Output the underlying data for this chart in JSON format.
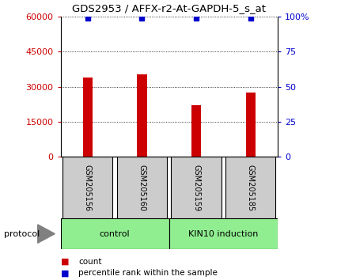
{
  "title": "GDS2953 / AFFX-r2-At-GAPDH-5_s_at",
  "samples": [
    "GSM205156",
    "GSM205160",
    "GSM205159",
    "GSM205185"
  ],
  "counts": [
    34000,
    35500,
    22000,
    27500
  ],
  "percentile_ranks": [
    99,
    99,
    99,
    99
  ],
  "bar_color": "#CC0000",
  "dot_color": "#0000CC",
  "left_ylim": [
    0,
    60000
  ],
  "right_ylim": [
    0,
    100
  ],
  "left_yticks": [
    0,
    15000,
    30000,
    45000,
    60000
  ],
  "right_yticks": [
    0,
    25,
    50,
    75,
    100
  ],
  "left_yticklabels": [
    "0",
    "15000",
    "30000",
    "45000",
    "60000"
  ],
  "right_yticklabels": [
    "0",
    "25",
    "50",
    "75",
    "100%"
  ],
  "sample_box_color": "#cccccc",
  "protocol_color": "#90EE90",
  "legend_count_color": "#CC0000",
  "legend_pct_color": "#0000CC",
  "legend_count_label": "count",
  "legend_pct_label": "percentile rank within the sample",
  "protocol_label": "protocol",
  "group_ranges": [
    [
      -0.5,
      1.5,
      "control"
    ],
    [
      1.5,
      3.5,
      "KIN10 induction"
    ]
  ]
}
